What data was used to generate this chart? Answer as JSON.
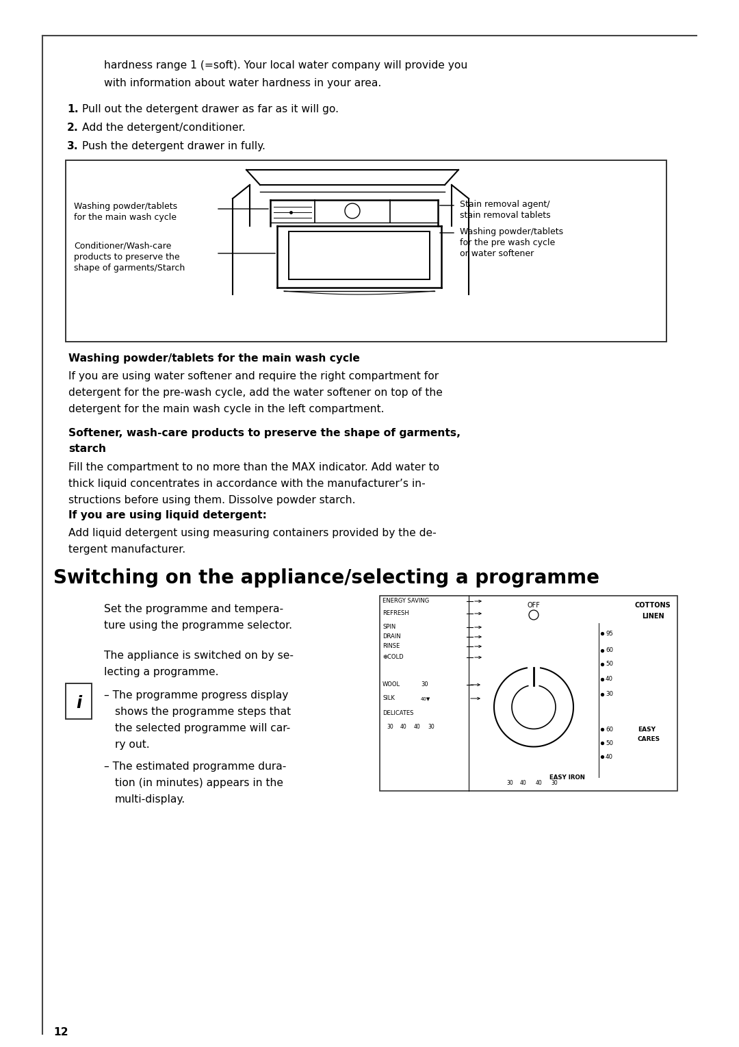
{
  "bg_color": "#ffffff",
  "text_color": "#000000",
  "page_number": "12",
  "intro_line1": "hardness range 1 (=soft). Your local water company will provide you",
  "intro_line2": "with information about water hardness in your area.",
  "step1_num": "1.",
  "step1_text": "Pull out the detergent drawer as far as it will go.",
  "step2_num": "2.",
  "step2_text": "Add the detergent/conditioner.",
  "step3_num": "3.",
  "step3_text": "Push the detergent drawer in fully.",
  "sec1_head": "Washing powder/tablets for the main wash cycle",
  "sec1_body1": "If you are using water softener and require the right compartment for",
  "sec1_body2": "detergent for the pre-wash cycle, add the water softener on top of the",
  "sec1_body3": "detergent for the main wash cycle in the left compartment.",
  "sec2_head1": "Softener, wash-care products to preserve the shape of garments,",
  "sec2_head2": "starch",
  "sec2_body1": "Fill the compartment to no more than the MAX indicator. Add water to",
  "sec2_body2": "thick liquid concentrates in accordance with the manufacturer’s in-",
  "sec2_body3": "structions before using them. Dissolve powder starch.",
  "sec3_head": "If you are using liquid detergent:",
  "sec3_body1": "Add liquid detergent using measuring containers provided by the de-",
  "sec3_body2": "tergent manufacturer.",
  "main_head": "Switching on the appliance/selecting a programme",
  "p1_l1": "Set the programme and tempera-",
  "p1_l2": "ture using the programme selector.",
  "info_l1": "The appliance is switched on by se-",
  "info_l2": "lecting a programme.",
  "b1_l1": "– The programme progress display",
  "b1_l2": "shows the programme steps that",
  "b1_l3": "the selected programme will car-",
  "b1_l4": "ry out.",
  "b2_l1": "– The estimated programme dura-",
  "b2_l2": "tion (in minutes) appears in the",
  "b2_l3": "multi-display.",
  "dlabel_wp_main": "Washing powder/tablets",
  "dlabel_wp_main2": "for the main wash cycle",
  "dlabel_cond1": "Conditioner/Wash-care",
  "dlabel_cond2": "products to preserve the",
  "dlabel_cond3": "shape of garments/Starch",
  "dlabel_stain1": "Stain removal agent/",
  "dlabel_stain2": "stain removal tablets",
  "dlabel_wp_pre1": "Washing powder/tablets",
  "dlabel_wp_pre2": "for the pre wash cycle",
  "dlabel_wp_pre3": "or water softener"
}
